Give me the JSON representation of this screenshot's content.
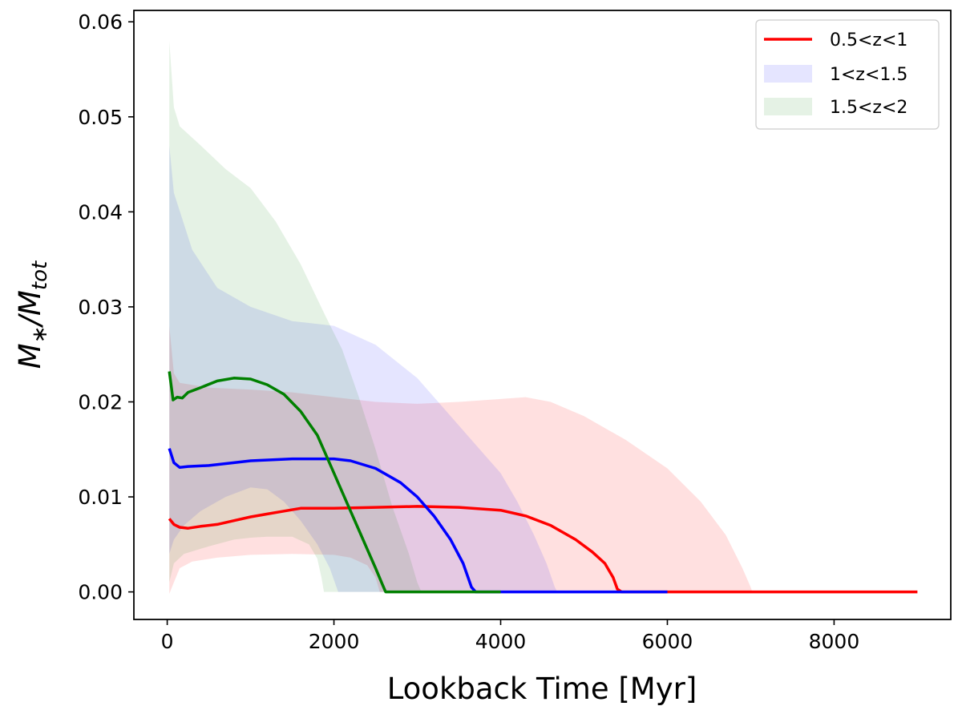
{
  "chart_data": {
    "type": "line",
    "xlabel": "Lookback Time [Myr]",
    "ylabel_main": "M",
    "ylabel_main_sub": "∗",
    "ylabel_den": "/M",
    "ylabel_den_sub": "tot",
    "xlim": [
      -400,
      9400
    ],
    "ylim": [
      -0.0029,
      0.0612
    ],
    "xticks": [
      {
        "value": 0,
        "label": "0"
      },
      {
        "value": 2000,
        "label": "2000"
      },
      {
        "value": 4000,
        "label": "4000"
      },
      {
        "value": 6000,
        "label": "6000"
      },
      {
        "value": 8000,
        "label": "8000"
      }
    ],
    "yticks": [
      {
        "value": 0.0,
        "label": "0.00"
      },
      {
        "value": 0.01,
        "label": "0.01"
      },
      {
        "value": 0.02,
        "label": "0.02"
      },
      {
        "value": 0.03,
        "label": "0.03"
      },
      {
        "value": 0.04,
        "label": "0.04"
      },
      {
        "value": 0.05,
        "label": "0.05"
      },
      {
        "value": 0.06,
        "label": "0.06"
      }
    ],
    "legend": {
      "placement": "top-right",
      "entries": [
        {
          "label": "0.5<z<1",
          "kind": "line",
          "color": "#ff0000"
        },
        {
          "label": "1<z<1.5",
          "kind": "patch",
          "color": "#0000ff",
          "alpha": 0.1
        },
        {
          "label": "1.5<z<2",
          "kind": "patch",
          "color": "#008000",
          "alpha": 0.1
        }
      ]
    },
    "series": [
      {
        "name": "0.5<z<1",
        "color": "#ff0000",
        "band_alpha": 0.12,
        "mean": [
          [
            25,
            0.0077
          ],
          [
            80,
            0.0071
          ],
          [
            150,
            0.0068
          ],
          [
            250,
            0.0067
          ],
          [
            400,
            0.0069
          ],
          [
            600,
            0.0071
          ],
          [
            800,
            0.0075
          ],
          [
            1000,
            0.0079
          ],
          [
            1200,
            0.0082
          ],
          [
            1400,
            0.0085
          ],
          [
            1600,
            0.0088
          ],
          [
            1800,
            0.0088
          ],
          [
            2000,
            0.0088
          ],
          [
            2500,
            0.0089
          ],
          [
            3000,
            0.009
          ],
          [
            3500,
            0.0089
          ],
          [
            4000,
            0.0086
          ],
          [
            4300,
            0.008
          ],
          [
            4600,
            0.007
          ],
          [
            4900,
            0.0055
          ],
          [
            5100,
            0.0042
          ],
          [
            5250,
            0.003
          ],
          [
            5350,
            0.0015
          ],
          [
            5400,
            0.0003
          ],
          [
            5450,
            0.0
          ],
          [
            6000,
            0.0
          ],
          [
            7000,
            0.0
          ],
          [
            8000,
            0.0
          ],
          [
            9000,
            0.0
          ]
        ],
        "band_upper": [
          [
            25,
            0.028
          ],
          [
            80,
            0.023
          ],
          [
            150,
            0.022
          ],
          [
            500,
            0.0215
          ],
          [
            1000,
            0.0213
          ],
          [
            1500,
            0.021
          ],
          [
            2000,
            0.0205
          ],
          [
            2500,
            0.02
          ],
          [
            3000,
            0.0198
          ],
          [
            3500,
            0.02
          ],
          [
            4000,
            0.0203
          ],
          [
            4300,
            0.0205
          ],
          [
            4600,
            0.02
          ],
          [
            5000,
            0.0185
          ],
          [
            5500,
            0.016
          ],
          [
            6000,
            0.013
          ],
          [
            6400,
            0.0095
          ],
          [
            6700,
            0.006
          ],
          [
            6900,
            0.0025
          ],
          [
            7000,
            0.0005
          ],
          [
            7020,
            0.0
          ]
        ],
        "band_lower": [
          [
            25,
            -0.0002
          ],
          [
            80,
            0.001
          ],
          [
            150,
            0.0025
          ],
          [
            300,
            0.0032
          ],
          [
            600,
            0.0036
          ],
          [
            1000,
            0.0039
          ],
          [
            1500,
            0.004
          ],
          [
            2000,
            0.0039
          ],
          [
            2200,
            0.0036
          ],
          [
            2400,
            0.0028
          ],
          [
            2500,
            0.0015
          ],
          [
            2550,
            0.0
          ],
          [
            7020,
            0.0
          ]
        ]
      },
      {
        "name": "1<z<1.5",
        "color": "#0000ff",
        "band_alpha": 0.1,
        "mean": [
          [
            25,
            0.0151
          ],
          [
            80,
            0.0136
          ],
          [
            150,
            0.0131
          ],
          [
            250,
            0.0132
          ],
          [
            500,
            0.0133
          ],
          [
            800,
            0.0136
          ],
          [
            1000,
            0.0138
          ],
          [
            1500,
            0.014
          ],
          [
            2000,
            0.014
          ],
          [
            2200,
            0.0138
          ],
          [
            2500,
            0.013
          ],
          [
            2800,
            0.0115
          ],
          [
            3000,
            0.01
          ],
          [
            3200,
            0.008
          ],
          [
            3400,
            0.0055
          ],
          [
            3550,
            0.003
          ],
          [
            3650,
            0.0005
          ],
          [
            3700,
            0.0
          ],
          [
            4000,
            0.0
          ],
          [
            5000,
            0.0
          ],
          [
            6000,
            0.0
          ]
        ],
        "band_upper": [
          [
            25,
            0.047
          ],
          [
            80,
            0.042
          ],
          [
            300,
            0.036
          ],
          [
            600,
            0.032
          ],
          [
            1000,
            0.03
          ],
          [
            1500,
            0.0285
          ],
          [
            2000,
            0.028
          ],
          [
            2500,
            0.026
          ],
          [
            3000,
            0.0225
          ],
          [
            3500,
            0.0175
          ],
          [
            3800,
            0.0145
          ],
          [
            4000,
            0.0125
          ],
          [
            4200,
            0.0095
          ],
          [
            4400,
            0.006
          ],
          [
            4550,
            0.003
          ],
          [
            4650,
            0.0005
          ],
          [
            4680,
            0.0
          ]
        ],
        "band_lower": [
          [
            25,
            0.004
          ],
          [
            80,
            0.0055
          ],
          [
            200,
            0.007
          ],
          [
            400,
            0.0085
          ],
          [
            700,
            0.01
          ],
          [
            1000,
            0.011
          ],
          [
            1200,
            0.0108
          ],
          [
            1400,
            0.0095
          ],
          [
            1600,
            0.0075
          ],
          [
            1800,
            0.005
          ],
          [
            1950,
            0.0025
          ],
          [
            2050,
            0.0
          ],
          [
            4680,
            0.0
          ]
        ]
      },
      {
        "name": "1.5<z<2",
        "color": "#008000",
        "band_alpha": 0.1,
        "mean": [
          [
            25,
            0.0232
          ],
          [
            70,
            0.0202
          ],
          [
            120,
            0.0205
          ],
          [
            180,
            0.0204
          ],
          [
            250,
            0.021
          ],
          [
            400,
            0.0215
          ],
          [
            600,
            0.0222
          ],
          [
            800,
            0.0225
          ],
          [
            1000,
            0.0224
          ],
          [
            1200,
            0.0218
          ],
          [
            1400,
            0.0208
          ],
          [
            1600,
            0.019
          ],
          [
            1800,
            0.0165
          ],
          [
            1900,
            0.0145
          ],
          [
            2000,
            0.0125
          ],
          [
            2100,
            0.0105
          ],
          [
            2200,
            0.0085
          ],
          [
            2300,
            0.0065
          ],
          [
            2400,
            0.0045
          ],
          [
            2500,
            0.0025
          ],
          [
            2580,
            0.0008
          ],
          [
            2620,
            0.0
          ],
          [
            3000,
            0.0
          ],
          [
            4000,
            0.0
          ]
        ],
        "band_upper": [
          [
            25,
            0.058
          ],
          [
            80,
            0.051
          ],
          [
            150,
            0.049
          ],
          [
            400,
            0.047
          ],
          [
            700,
            0.0445
          ],
          [
            1000,
            0.0425
          ],
          [
            1300,
            0.039
          ],
          [
            1600,
            0.0345
          ],
          [
            1900,
            0.029
          ],
          [
            2100,
            0.0255
          ],
          [
            2300,
            0.0205
          ],
          [
            2500,
            0.015
          ],
          [
            2700,
            0.009
          ],
          [
            2900,
            0.004
          ],
          [
            3000,
            0.001
          ],
          [
            3050,
            0.0
          ]
        ],
        "band_lower": [
          [
            25,
            0.001
          ],
          [
            80,
            0.003
          ],
          [
            200,
            0.004
          ],
          [
            500,
            0.0048
          ],
          [
            800,
            0.0055
          ],
          [
            1000,
            0.0057
          ],
          [
            1200,
            0.0058
          ],
          [
            1500,
            0.0058
          ],
          [
            1700,
            0.005
          ],
          [
            1800,
            0.0035
          ],
          [
            1850,
            0.0015
          ],
          [
            1880,
            0.0
          ],
          [
            3050,
            0.0
          ]
        ]
      }
    ]
  }
}
